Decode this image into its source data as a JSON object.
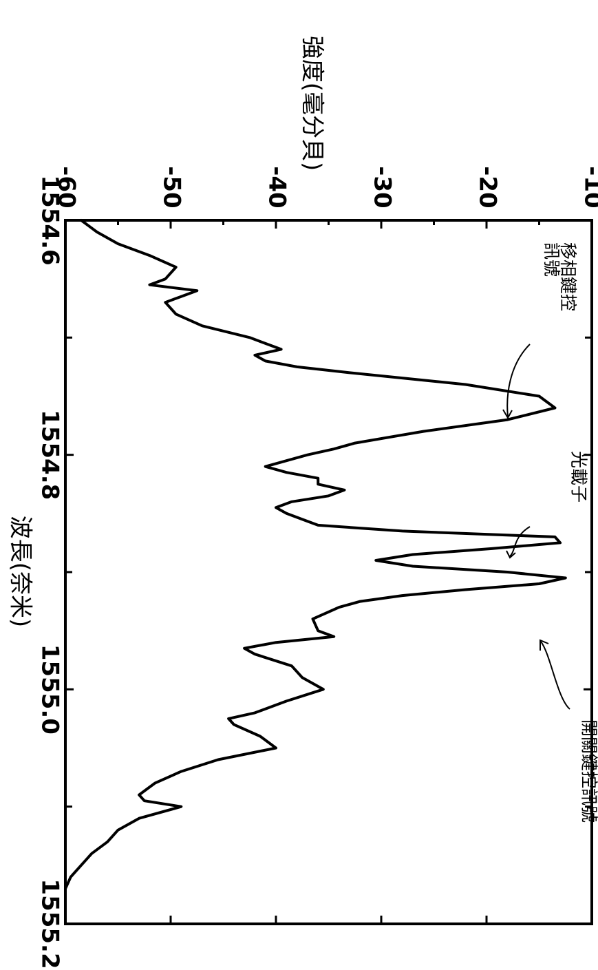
{
  "chart_data": {
    "type": "line",
    "orientation": "rotated-90-clockwise",
    "xlabel": "波長(奈米)",
    "ylabel": "強度(毫分貝)",
    "xlim": [
      1554.6,
      1555.2
    ],
    "ylim": [
      -60,
      -10
    ],
    "x_ticks": [
      1554.6,
      1554.8,
      1555.0,
      1555.2
    ],
    "x_tick_labels": [
      "1554.6",
      "1554.8",
      "1555.0",
      "1555.2"
    ],
    "y_ticks": [
      -60,
      -50,
      -40,
      -30,
      -20,
      -10
    ],
    "y_tick_labels": [
      "-60",
      "-50",
      "-40",
      "-30",
      "-20",
      "-10"
    ],
    "grid": false,
    "annotations": [
      {
        "text": "移相鍵控\n訊號",
        "x": 1554.78,
        "y": -13
      },
      {
        "text": "光載子",
        "x": 1554.88,
        "y": -12
      },
      {
        "text": "開關鍵控訊號",
        "x": 1554.93,
        "y": -11
      }
    ],
    "series": [
      {
        "x": [
          1554.6,
          1554.61,
          1554.62,
          1554.63,
          1554.64,
          1554.65,
          1554.655,
          1554.66,
          1554.665,
          1554.67,
          1554.68,
          1554.69,
          1554.7,
          1554.71,
          1554.715,
          1554.72,
          1554.725,
          1554.73,
          1554.74,
          1554.75,
          1554.76,
          1554.77,
          1554.78,
          1554.79,
          1554.795,
          1554.8,
          1554.805,
          1554.81,
          1554.815,
          1554.82,
          1554.825,
          1554.83,
          1554.835,
          1554.84,
          1554.845,
          1554.85,
          1554.855,
          1554.86,
          1554.865,
          1554.87,
          1554.875,
          1554.88,
          1554.885,
          1554.89,
          1554.895,
          1554.9,
          1554.905,
          1554.91,
          1554.915,
          1554.92,
          1554.925,
          1554.93,
          1554.94,
          1554.95,
          1554.955,
          1554.96,
          1554.965,
          1554.97,
          1554.98,
          1554.99,
          1555.0,
          1555.01,
          1555.02,
          1555.025,
          1555.03,
          1555.04,
          1555.05,
          1555.06,
          1555.07,
          1555.08,
          1555.09,
          1555.095,
          1555.1,
          1555.11,
          1555.12,
          1555.13,
          1555.14,
          1555.15,
          1555.16,
          1555.17,
          1555.18,
          1555.19,
          1555.2
        ],
        "y": [
          -58.5,
          -57.0,
          -55.0,
          -52.0,
          -49.5,
          -50.5,
          -52.0,
          -47.5,
          -49.0,
          -50.5,
          -49.5,
          -47.0,
          -42.5,
          -39.5,
          -42.0,
          -41.0,
          -38.0,
          -33.0,
          -22.0,
          -15.0,
          -13.5,
          -18.0,
          -26.0,
          -32.5,
          -34.5,
          -37.0,
          -39.0,
          -41.0,
          -39.0,
          -36.0,
          -36.0,
          -33.5,
          -35.0,
          -38.5,
          -40.0,
          -39.0,
          -37.5,
          -36.0,
          -28.0,
          -13.5,
          -13.0,
          -19.5,
          -27.0,
          -30.5,
          -27.0,
          -18.0,
          -12.5,
          -15.0,
          -22.0,
          -28.0,
          -32.0,
          -34.0,
          -36.5,
          -36.0,
          -34.5,
          -40.0,
          -43.0,
          -42.0,
          -38.5,
          -37.5,
          -35.5,
          -39.0,
          -42.0,
          -44.5,
          -44.0,
          -41.5,
          -40.0,
          -45.5,
          -49.0,
          -51.5,
          -53.0,
          -52.5,
          -49.0,
          -53.0,
          -55.0,
          -56.0,
          -57.5,
          -58.5,
          -59.5,
          -60.2,
          -61.0,
          -62.0,
          -63.0
        ]
      }
    ]
  }
}
